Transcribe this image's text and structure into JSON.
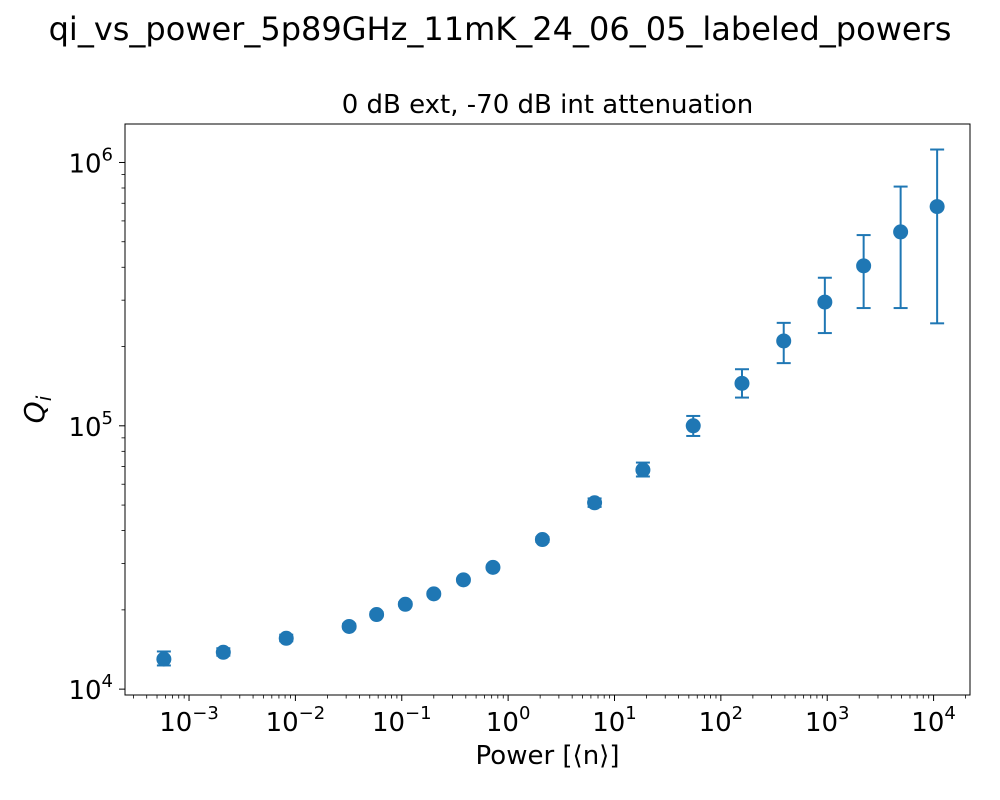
{
  "figure": {
    "suptitle": "qi_vs_power_5p89GHz_11mK_24_06_05_labeled_powers",
    "title": "0 dB ext, -70 dB int attenuation"
  },
  "chart_data": {
    "type": "scatter",
    "title": "0 dB ext, -70 dB int attenuation",
    "xlabel": "Power [⟨n⟩]",
    "ylabel": "Q_i",
    "xscale": "log",
    "yscale": "log",
    "xlim": [
      0.00025,
      22000
    ],
    "ylim": [
      9500,
      1400000
    ],
    "x_ticks": [
      {
        "value": 0.001,
        "base": "10",
        "exp": "−3"
      },
      {
        "value": 0.01,
        "base": "10",
        "exp": "−2"
      },
      {
        "value": 0.1,
        "base": "10",
        "exp": "−1"
      },
      {
        "value": 1,
        "base": "10",
        "exp": "0"
      },
      {
        "value": 10,
        "base": "10",
        "exp": "1"
      },
      {
        "value": 100,
        "base": "10",
        "exp": "2"
      },
      {
        "value": 1000,
        "base": "10",
        "exp": "3"
      },
      {
        "value": 10000,
        "base": "10",
        "exp": "4"
      }
    ],
    "y_ticks": [
      {
        "value": 10000,
        "base": "10",
        "exp": "4"
      },
      {
        "value": 100000,
        "base": "10",
        "exp": "5"
      },
      {
        "value": 1000000,
        "base": "10",
        "exp": "6"
      }
    ],
    "grid": false,
    "color": "#1f77b4",
    "series": [
      {
        "points": [
          {
            "x": 0.00058,
            "y": 13000,
            "err_low": 12300,
            "err_high": 13900
          },
          {
            "x": 0.0021,
            "y": 13800,
            "err_low": 13400,
            "err_high": 14300
          },
          {
            "x": 0.0082,
            "y": 15600,
            "err_low": 15200,
            "err_high": 16100
          },
          {
            "x": 0.032,
            "y": 17300,
            "err_low": 17000,
            "err_high": 17700
          },
          {
            "x": 0.058,
            "y": 19200,
            "err_low": 18900,
            "err_high": 19600
          },
          {
            "x": 0.108,
            "y": 21000,
            "err_low": 20700,
            "err_high": 21400
          },
          {
            "x": 0.2,
            "y": 23000,
            "err_low": 22700,
            "err_high": 23400
          },
          {
            "x": 0.38,
            "y": 26000,
            "err_low": 25600,
            "err_high": 26400
          },
          {
            "x": 0.72,
            "y": 29000,
            "err_low": 28600,
            "err_high": 29500
          },
          {
            "x": 2.1,
            "y": 37000,
            "err_low": 36200,
            "err_high": 37800
          },
          {
            "x": 6.5,
            "y": 51000,
            "err_low": 49200,
            "err_high": 53000
          },
          {
            "x": 18.5,
            "y": 68000,
            "err_low": 64200,
            "err_high": 72500
          },
          {
            "x": 55,
            "y": 100000,
            "err_low": 91500,
            "err_high": 109000
          },
          {
            "x": 158,
            "y": 145000,
            "err_low": 128000,
            "err_high": 164000
          },
          {
            "x": 390,
            "y": 210000,
            "err_low": 173000,
            "err_high": 246000
          },
          {
            "x": 950,
            "y": 295000,
            "err_low": 225000,
            "err_high": 365000
          },
          {
            "x": 2200,
            "y": 405000,
            "err_low": 280000,
            "err_high": 530000
          },
          {
            "x": 4900,
            "y": 545000,
            "err_low": 280000,
            "err_high": 810000
          },
          {
            "x": 10800,
            "y": 680000,
            "err_low": 245000,
            "err_high": 1120000
          }
        ]
      }
    ]
  }
}
